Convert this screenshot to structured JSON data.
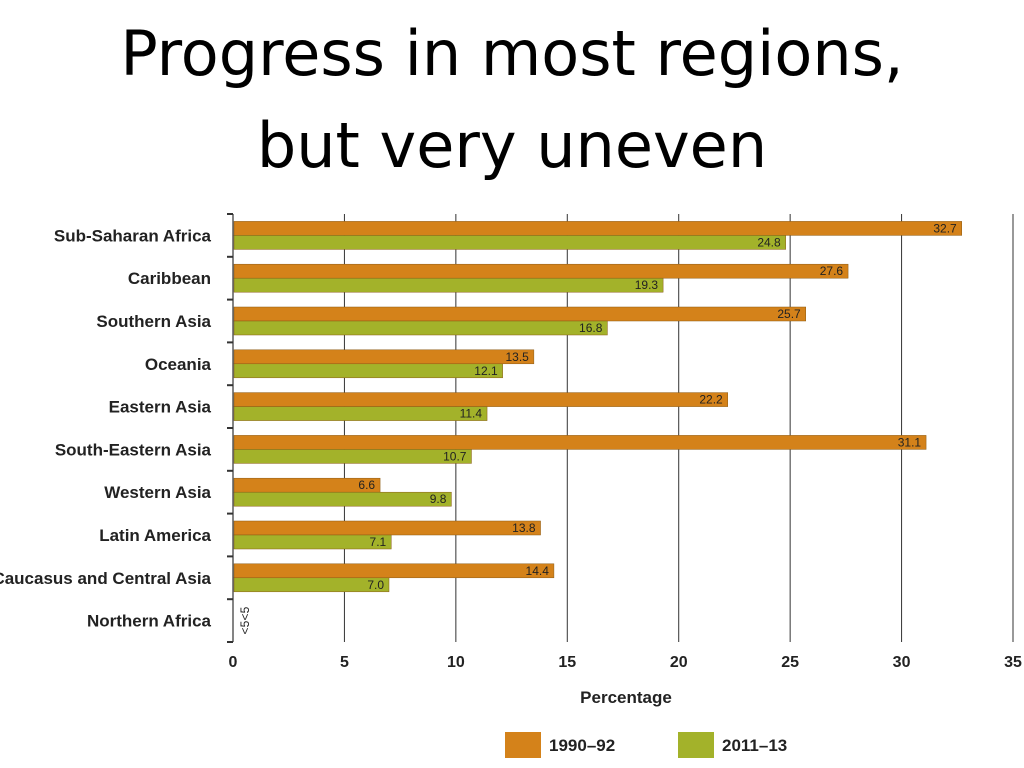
{
  "title": {
    "line1": "Progress in most regions,",
    "line2": "but very uneven"
  },
  "chart_data": {
    "type": "bar",
    "orientation": "horizontal",
    "title": "Progress in most regions, but very uneven",
    "xlabel": "Percentage",
    "ylabel": "",
    "xlim": [
      0,
      35
    ],
    "xticks": [
      0,
      5,
      10,
      15,
      20,
      25,
      30,
      35
    ],
    "grid": "vertical",
    "legend": "bottom",
    "categories": [
      "Sub-Saharan Africa",
      "Caribbean",
      "Southern Asia",
      "Oceania",
      "Eastern Asia",
      "South-Eastern Asia",
      "Western Asia",
      "Latin America",
      "Caucasus and Central Asia",
      "Northern Africa"
    ],
    "series": [
      {
        "name": "1990–92",
        "color": "#d4821a",
        "values": [
          32.7,
          27.6,
          25.7,
          13.5,
          22.2,
          31.1,
          6.6,
          13.8,
          14.4,
          null
        ],
        "labels": [
          "32.7",
          "27.6",
          "25.7",
          "13.5",
          "22.2",
          "31.1",
          "6.6",
          "13.8",
          "14.4",
          "<5"
        ]
      },
      {
        "name": "2011–13",
        "color": "#a3b22a",
        "values": [
          24.8,
          19.3,
          16.8,
          12.1,
          11.4,
          10.7,
          9.8,
          7.1,
          7.0,
          null
        ],
        "labels": [
          "24.8",
          "19.3",
          "16.8",
          "12.1",
          "11.4",
          "10.7",
          "9.8",
          "7.1",
          "7.0",
          "<5"
        ]
      }
    ]
  }
}
